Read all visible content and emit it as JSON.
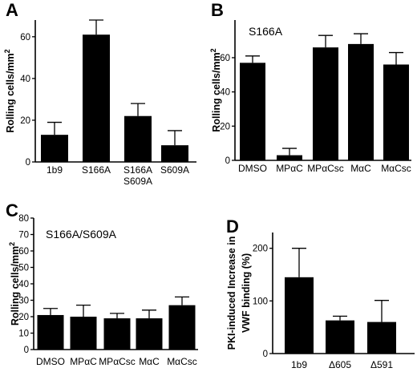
{
  "chart_data": [
    {
      "panel": "A",
      "type": "bar",
      "categories": [
        [
          "1b9"
        ],
        [
          "S166A"
        ],
        [
          "S166A",
          "S609A"
        ],
        [
          "S609A"
        ]
      ],
      "values": [
        13,
        61,
        22,
        8
      ],
      "errors": [
        6,
        7,
        6,
        7
      ],
      "ylabel": "Rolling cells/mm",
      "ylabel_sup": "2",
      "annotation": "",
      "ylim": [
        0,
        68
      ],
      "yticks": [
        0,
        20,
        40,
        60
      ]
    },
    {
      "panel": "B",
      "type": "bar",
      "categories": [
        [
          "DMSO"
        ],
        [
          "MPαC"
        ],
        [
          "MPαCsc"
        ],
        [
          "MαC"
        ],
        [
          "MαCsc"
        ]
      ],
      "values": [
        57,
        3,
        66,
        68,
        56
      ],
      "errors": [
        4,
        4,
        7,
        6,
        7
      ],
      "ylabel": "Rolling cells/mm",
      "ylabel_sup": "2",
      "annotation": "S166A",
      "ylim": [
        0,
        82
      ],
      "yticks": [
        0,
        20,
        40,
        60
      ]
    },
    {
      "panel": "C",
      "type": "bar",
      "categories": [
        [
          "DMSO"
        ],
        [
          "MPαC"
        ],
        [
          "MPαCsc"
        ],
        [
          "MαC"
        ],
        [
          "MαCsc"
        ]
      ],
      "values": [
        21,
        20,
        19,
        19,
        27
      ],
      "errors": [
        4,
        7,
        3,
        5,
        5
      ],
      "ylabel": "Rolling cells/mm",
      "ylabel_sup": "2",
      "annotation": "S166A/S609A",
      "ylim": [
        0,
        80
      ],
      "yticks": [
        0,
        10,
        20,
        30,
        40,
        50,
        60,
        70,
        80
      ]
    },
    {
      "panel": "D",
      "type": "bar",
      "categories": [
        [
          "1b9"
        ],
        [
          "Δ605"
        ],
        [
          "Δ591"
        ]
      ],
      "values": [
        145,
        63,
        60
      ],
      "errors": [
        55,
        8,
        41
      ],
      "ylabel_lines": [
        "PKI-induced  Increase in",
        "VWF binding (%)"
      ],
      "annotation": "",
      "ylim": [
        0,
        230
      ],
      "yticks": [
        0,
        100,
        200
      ]
    }
  ]
}
